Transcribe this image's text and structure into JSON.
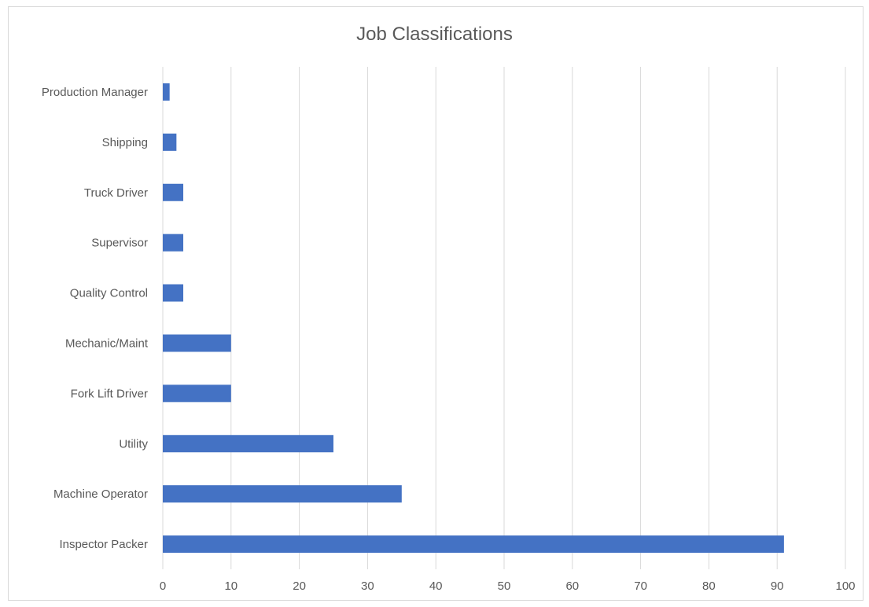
{
  "chart_data": {
    "type": "bar",
    "orientation": "horizontal",
    "title": "Job Classifications",
    "xlabel": "",
    "ylabel": "",
    "categories": [
      "Inspector Packer",
      "Machine Operator",
      "Utility",
      "Fork Lift Driver",
      "Mechanic/Maint",
      "Quality Control",
      "Supervisor",
      "Truck Driver",
      "Shipping",
      "Production Manager"
    ],
    "values": [
      91,
      35,
      25,
      10,
      10,
      3,
      3,
      3,
      2,
      1
    ],
    "xlim": [
      0,
      100
    ],
    "x_ticks": [
      0,
      10,
      20,
      30,
      40,
      50,
      60,
      70,
      80,
      90,
      100
    ],
    "grid": "vertical",
    "legend": "none",
    "colors": {
      "bar": "#4472c4",
      "grid": "#d9d9d9",
      "text": "#595959"
    }
  }
}
